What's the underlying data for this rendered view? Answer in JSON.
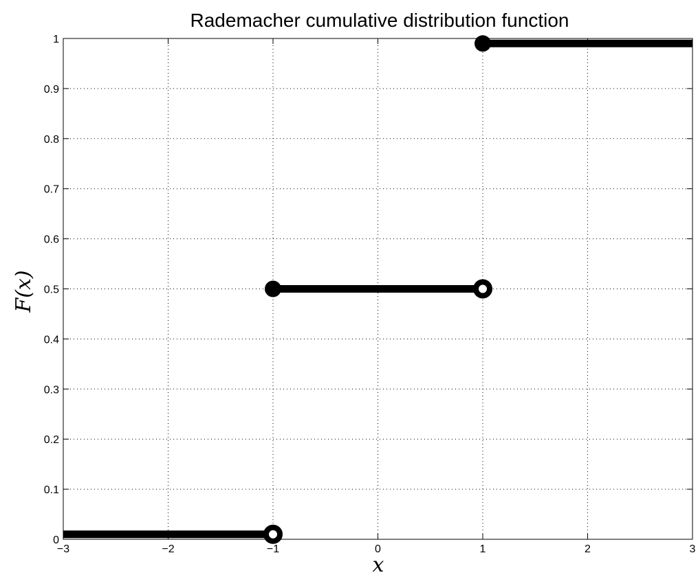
{
  "chart_data": {
    "type": "line",
    "title": "Rademacher cumulative distribution function",
    "xlabel": "x",
    "ylabel": "F(x)",
    "xlim": [
      -3,
      3
    ],
    "ylim": [
      0,
      1
    ],
    "x_ticks": [
      -3,
      -2,
      -1,
      0,
      1,
      2,
      3
    ],
    "x_tick_labels": [
      "−3",
      "−2",
      "−1",
      "0",
      "1",
      "2",
      "3"
    ],
    "y_ticks": [
      0,
      0.1,
      0.2,
      0.3,
      0.4,
      0.5,
      0.6,
      0.7,
      0.8,
      0.9,
      1
    ],
    "y_tick_labels": [
      "0",
      "0.1",
      "0.2",
      "0.3",
      "0.4",
      "0.5",
      "0.6",
      "0.7",
      "0.8",
      "0.9",
      "1"
    ],
    "grid": true,
    "grid_style": "dotted",
    "line_color": "#000000",
    "segments": [
      {
        "x": [
          -3,
          -1
        ],
        "y": 0.01
      },
      {
        "x": [
          -1,
          1
        ],
        "y": 0.5
      },
      {
        "x": [
          1,
          3
        ],
        "y": 0.99
      }
    ],
    "closed_points": [
      {
        "x": -1,
        "y": 0.5
      },
      {
        "x": 1,
        "y": 0.99
      }
    ],
    "open_points": [
      {
        "x": -1,
        "y": 0.01
      },
      {
        "x": 1,
        "y": 0.5
      }
    ]
  }
}
